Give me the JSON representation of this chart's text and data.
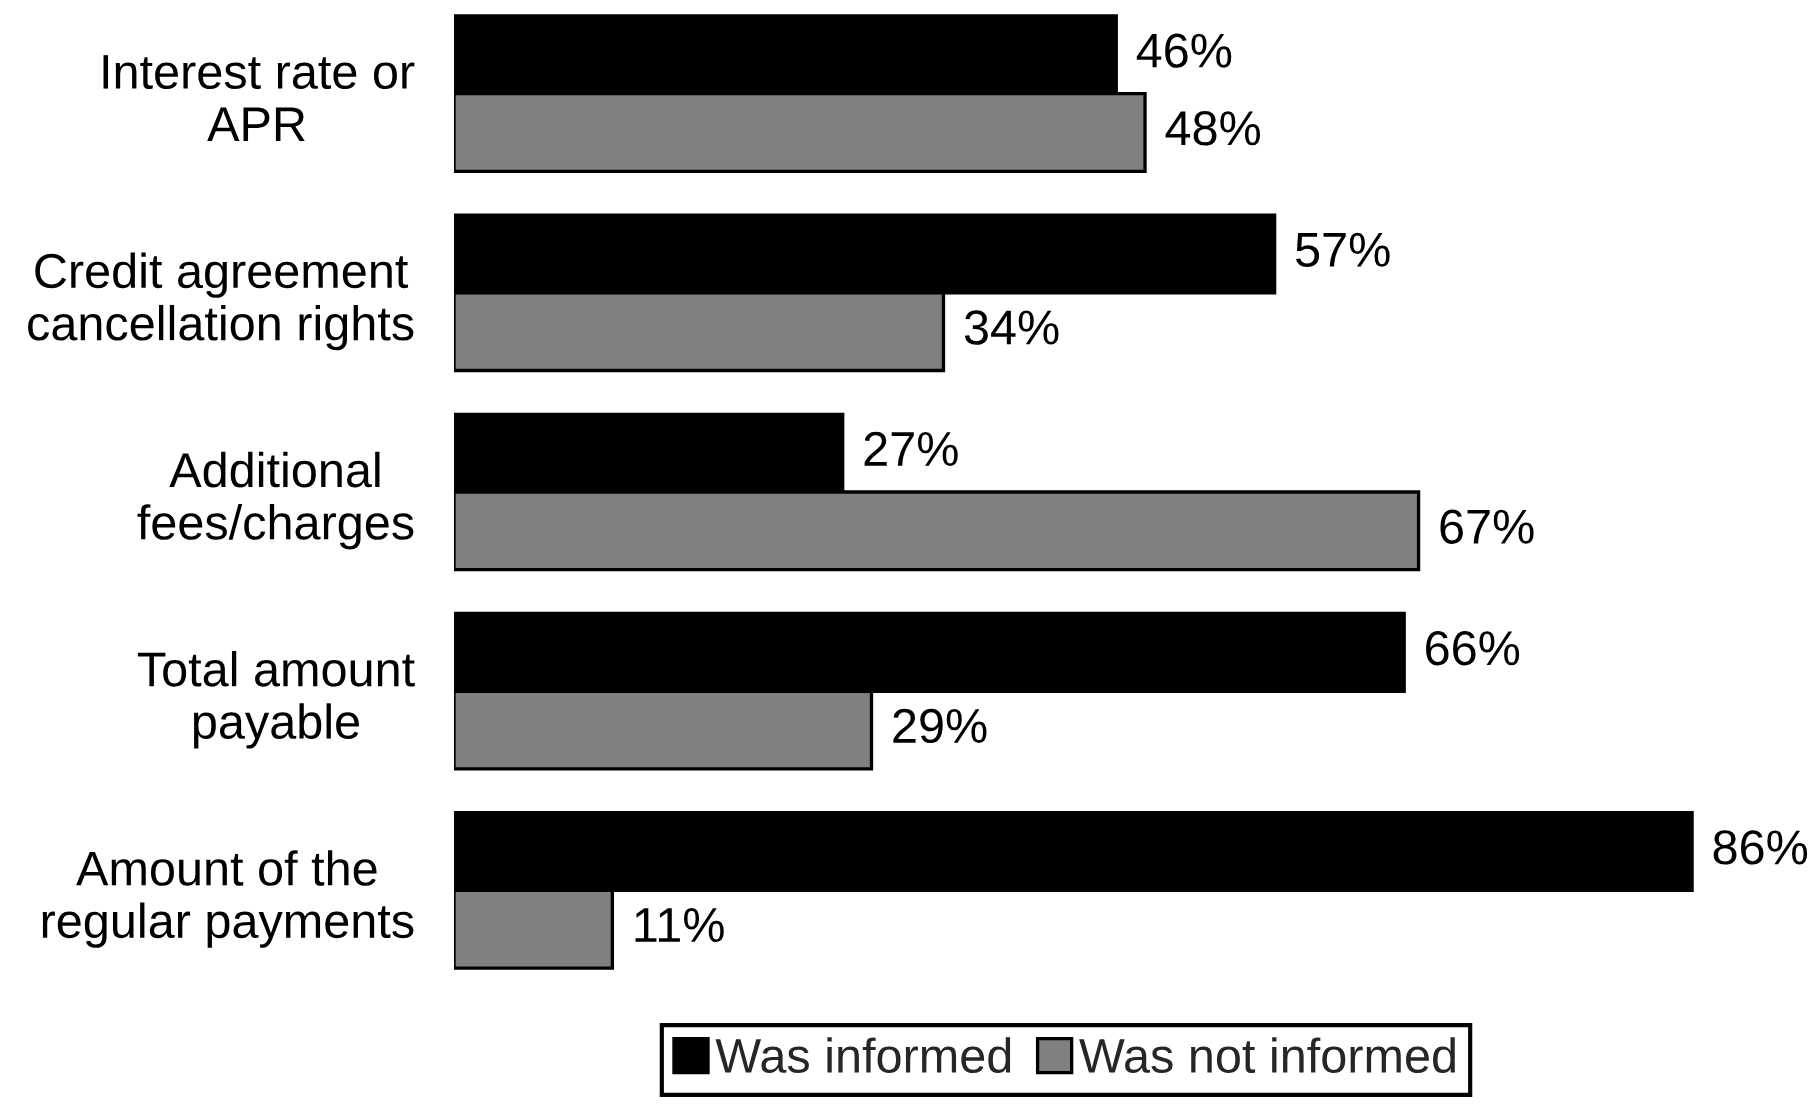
{
  "chart_data": {
    "type": "bar",
    "orientation": "horizontal",
    "categories": [
      "Interest rate or\nAPR",
      "Credit agreement\ncancellation rights",
      "Additional\nfees/charges",
      "Total amount\npayable",
      "Amount of the\nregular payments"
    ],
    "series": [
      {
        "name": "Was informed",
        "color": "#000000",
        "values": [
          46,
          57,
          27,
          66,
          86
        ],
        "value_labels": [
          "46%",
          "57%",
          "27%",
          "66%",
          "86%"
        ]
      },
      {
        "name": "Was not informed",
        "color": "#808080",
        "values": [
          48,
          34,
          67,
          29,
          11
        ],
        "value_labels": [
          "48%",
          "34%",
          "67%",
          "29%",
          "11%"
        ]
      }
    ],
    "legend": "bottom",
    "tick_labels": "y"
  }
}
